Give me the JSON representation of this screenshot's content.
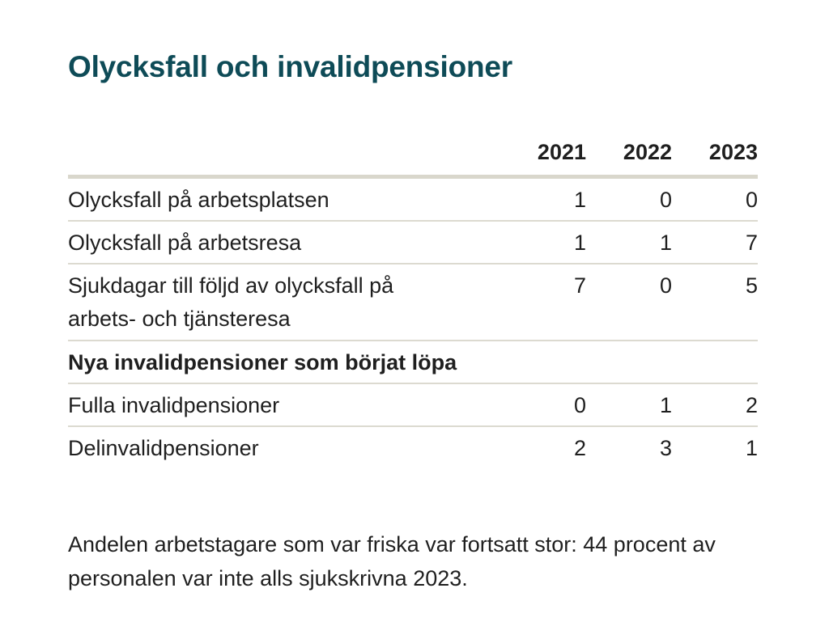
{
  "title": "Olycksfall och invalidpensioner",
  "table": {
    "years": [
      "2021",
      "2022",
      "2023"
    ],
    "rows": [
      {
        "label": "Olycksfall på arbetsplatsen",
        "values": [
          "1",
          "0",
          "0"
        ]
      },
      {
        "label": "Olycksfall på arbetsresa",
        "values": [
          "1",
          "1",
          "7"
        ]
      },
      {
        "label": "Sjukdagar till följd av olycksfall på arbets- och tjänsteresa",
        "line1": "Sjukdagar till följd av olycksfall på",
        "line2": "arbets- och tjänsteresa",
        "values": [
          "7",
          "0",
          "5"
        ]
      },
      {
        "label": "Nya invalidpensioner som börjat löpa",
        "values": []
      },
      {
        "label": "Fulla invalidpensioner",
        "values": [
          "0",
          "1",
          "2"
        ]
      },
      {
        "label": "Delinvalidpensioner",
        "values": [
          "2",
          "3",
          "1"
        ]
      }
    ]
  },
  "footnote": "Andelen arbetstagare som var friska var fortsatt stor: 44 procent av personalen var inte alls sjukskrivna 2023.",
  "colors": {
    "title": "#0e4b57",
    "header_rule": "#d9d7cc",
    "row_rule": "#dcdad0"
  }
}
